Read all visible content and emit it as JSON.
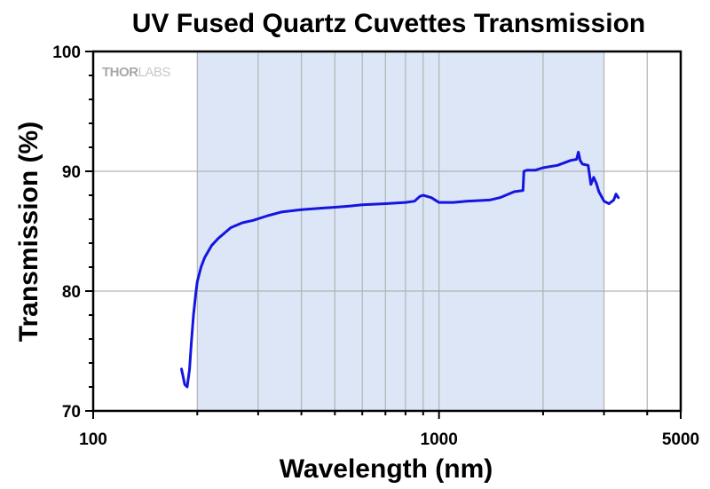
{
  "chart_data": {
    "type": "line",
    "title": "UV Fused Quartz Cuvettes Transmission",
    "xlabel": "Wavelength (nm)",
    "ylabel": "Transmission (%)",
    "x_scale": "log",
    "xlim": [
      100,
      5000
    ],
    "ylim": [
      70,
      100
    ],
    "x_ticks": [
      100,
      1000,
      5000
    ],
    "x_tick_labels": [
      "100",
      "1000",
      "5000"
    ],
    "y_ticks": [
      70,
      80,
      90,
      100
    ],
    "y_tick_labels": [
      "70",
      "80",
      "90",
      "100"
    ],
    "grid": true,
    "highlight_band": {
      "x_start": 200,
      "x_end": 3000,
      "color": "#dce6f7"
    },
    "watermark": {
      "bold_part": "THOR",
      "light_part": "LABS"
    },
    "series": [
      {
        "color": "#1515e0",
        "x": [
          180,
          184,
          187,
          190,
          192,
          195,
          198,
          200,
          205,
          210,
          220,
          230,
          250,
          270,
          290,
          320,
          350,
          400,
          450,
          500,
          550,
          600,
          700,
          800,
          850,
          880,
          900,
          950,
          1000,
          1100,
          1200,
          1400,
          1500,
          1650,
          1750,
          1760,
          1800,
          1900,
          2000,
          2200,
          2400,
          2500,
          2530,
          2560,
          2600,
          2700,
          2750,
          2800,
          2850,
          2900,
          3000,
          3100,
          3200,
          3250,
          3300
        ],
        "y": [
          73.5,
          72.2,
          72.0,
          73.5,
          75.5,
          78.0,
          79.8,
          80.8,
          82.0,
          82.8,
          83.8,
          84.4,
          85.3,
          85.7,
          85.9,
          86.3,
          86.6,
          86.8,
          86.9,
          87.0,
          87.1,
          87.2,
          87.3,
          87.4,
          87.5,
          87.9,
          88.0,
          87.8,
          87.4,
          87.4,
          87.5,
          87.6,
          87.8,
          88.3,
          88.4,
          90.0,
          90.1,
          90.1,
          90.3,
          90.5,
          90.9,
          91.0,
          91.6,
          90.9,
          90.6,
          90.5,
          88.9,
          89.5,
          89.0,
          88.3,
          87.5,
          87.3,
          87.6,
          88.1,
          87.8
        ]
      }
    ]
  }
}
